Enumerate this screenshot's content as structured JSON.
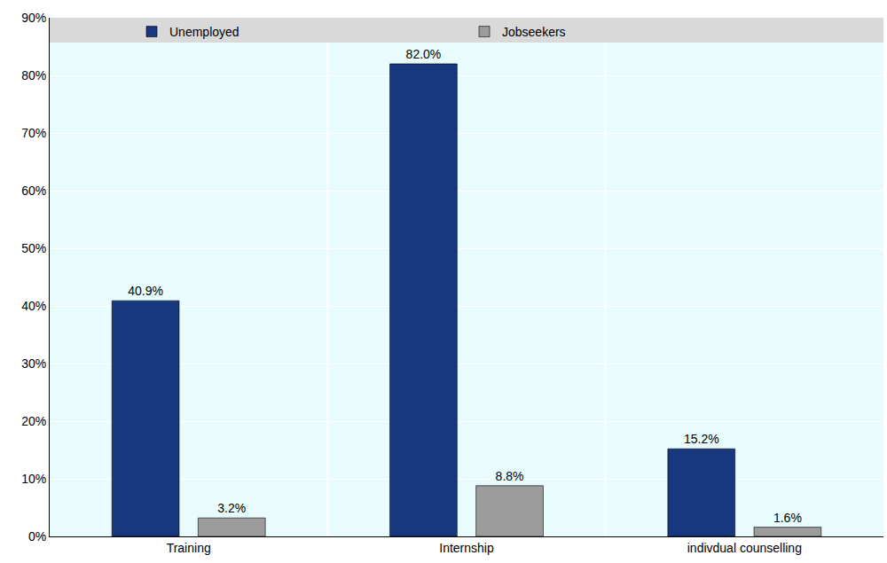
{
  "chart_data": {
    "type": "bar",
    "categories": [
      "Training",
      "Internship",
      "indivdual counselling"
    ],
    "series": [
      {
        "name": "Unemployed",
        "color": "#17377f",
        "values": [
          40.9,
          82.0,
          15.2
        ],
        "value_labels": [
          "40.9%",
          "82.0%",
          "15.2%"
        ]
      },
      {
        "name": "Jobseekers",
        "color": "#9c9c9c",
        "values": [
          3.2,
          8.8,
          1.6
        ],
        "value_labels": [
          "3.2%",
          "8.8%",
          "1.6%"
        ]
      }
    ],
    "ylim": [
      0,
      90
    ],
    "yticks": [
      {
        "value": 0,
        "label": "0%"
      },
      {
        "value": 10,
        "label": "10%"
      },
      {
        "value": 20,
        "label": "20%"
      },
      {
        "value": 30,
        "label": "30%"
      },
      {
        "value": 40,
        "label": "40%"
      },
      {
        "value": 50,
        "label": "50%"
      },
      {
        "value": 60,
        "label": "60%"
      },
      {
        "value": 70,
        "label": "70%"
      },
      {
        "value": 80,
        "label": "80%"
      },
      {
        "value": 90,
        "label": "90%"
      }
    ],
    "grid": true,
    "legend": "top",
    "data_labels": true
  }
}
